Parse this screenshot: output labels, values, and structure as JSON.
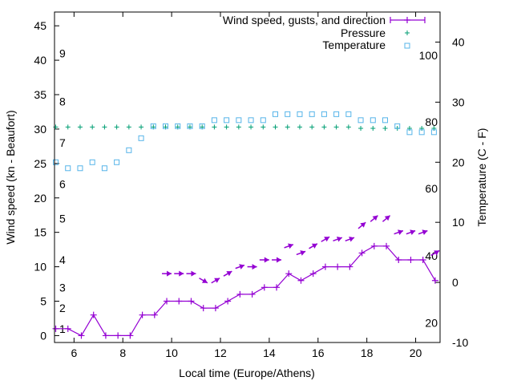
{
  "chart_data": {
    "type": "line",
    "xlabel": "Local time (Europe/Athens)",
    "ylabel": "Wind speed (kn - Beaufort)",
    "y2label": "Temperature (C - F)",
    "xlim": [
      5.2,
      21.0
    ],
    "ylim": [
      -1,
      47
    ],
    "y2lim": [
      -10,
      45
    ],
    "xticks": [
      6,
      8,
      10,
      12,
      14,
      16,
      18,
      20
    ],
    "yticks": [
      0,
      5,
      10,
      15,
      20,
      25,
      30,
      35,
      40,
      45
    ],
    "y2ticks": [
      -10,
      0,
      10,
      20,
      30,
      40
    ],
    "beaufort_labels": [
      {
        "label": "1",
        "kn": 1
      },
      {
        "label": "2",
        "kn": 4
      },
      {
        "label": "3",
        "kn": 7
      },
      {
        "label": "4",
        "kn": 11
      },
      {
        "label": "5",
        "kn": 17
      },
      {
        "label": "6",
        "kn": 22
      },
      {
        "label": "7",
        "kn": 28
      },
      {
        "label": "8",
        "kn": 34
      },
      {
        "label": "9",
        "kn": 41
      }
    ],
    "fahrenheit_labels": [
      {
        "label": "20",
        "c": -6.7
      },
      {
        "label": "40",
        "c": 4.4
      },
      {
        "label": "60",
        "c": 15.6
      },
      {
        "label": "80",
        "c": 26.7
      },
      {
        "label": "100",
        "c": 37.8
      }
    ],
    "series": [
      {
        "name": "Wind speed, gusts, and direction",
        "color": "#9400d3",
        "x": [
          5.25,
          5.75,
          6.3,
          6.8,
          7.3,
          7.8,
          8.3,
          8.8,
          9.3,
          9.8,
          10.3,
          10.8,
          11.3,
          11.8,
          12.3,
          12.8,
          13.3,
          13.8,
          14.3,
          14.8,
          15.3,
          15.8,
          16.3,
          16.8,
          17.3,
          17.8,
          18.3,
          18.8,
          19.3,
          19.8,
          20.3,
          20.8
        ],
        "y": [
          1,
          1,
          0,
          3,
          0,
          0,
          0,
          3,
          3,
          5,
          5,
          5,
          4,
          4,
          5,
          6,
          6,
          7,
          7,
          9,
          8,
          9,
          10,
          10,
          10,
          12,
          13,
          13,
          11,
          11,
          11,
          8
        ]
      },
      {
        "name": "Pressure",
        "color": "#009e73",
        "x": [
          5.25,
          5.75,
          6.25,
          6.75,
          7.25,
          7.75,
          8.25,
          8.75,
          9.25,
          9.75,
          10.25,
          10.75,
          11.25,
          11.75,
          12.25,
          12.75,
          13.25,
          13.75,
          14.25,
          14.75,
          15.25,
          15.75,
          16.25,
          16.75,
          17.25,
          17.75,
          18.25,
          18.75,
          19.25,
          19.75,
          20.25,
          20.75
        ],
        "y": [
          30.3,
          30.3,
          30.3,
          30.3,
          30.3,
          30.3,
          30.3,
          30.3,
          30.3,
          30.3,
          30.3,
          30.3,
          30.3,
          30.3,
          30.3,
          30.3,
          30.3,
          30.3,
          30.3,
          30.3,
          30.3,
          30.3,
          30.3,
          30.3,
          30.3,
          30.1,
          30.1,
          30.1,
          30.1,
          30.1,
          30.1,
          30.1
        ]
      },
      {
        "name": "Temperature",
        "color": "#56b4e9",
        "axis": "y2",
        "x": [
          5.25,
          5.75,
          6.25,
          6.75,
          7.25,
          7.75,
          8.25,
          8.75,
          9.25,
          9.75,
          10.25,
          10.75,
          11.25,
          11.75,
          12.25,
          12.75,
          13.25,
          13.75,
          14.25,
          14.75,
          15.25,
          15.75,
          16.25,
          16.75,
          17.25,
          17.75,
          18.25,
          18.75,
          19.25,
          19.75,
          20.25,
          20.75
        ],
        "y": [
          20,
          19,
          19,
          20,
          19,
          20,
          22,
          24,
          26,
          26,
          26,
          26,
          26,
          27,
          27,
          27,
          27,
          27,
          28,
          28,
          28,
          28,
          28,
          28,
          28,
          27,
          27,
          27,
          26,
          25,
          25,
          25
        ]
      }
    ],
    "wind_direction": {
      "name": "Wind direction",
      "color": "#9400d3",
      "x": [
        9.8,
        10.3,
        10.8,
        11.3,
        11.8,
        12.3,
        12.8,
        13.3,
        13.8,
        14.3,
        14.8,
        15.3,
        15.8,
        16.3,
        16.8,
        17.3,
        17.8,
        18.3,
        18.8,
        19.3,
        19.8,
        20.3,
        20.8
      ],
      "y": [
        9,
        9,
        9,
        8,
        8,
        9,
        10,
        10,
        11,
        11,
        13,
        12,
        13,
        14,
        14,
        14,
        16,
        17,
        17,
        15,
        15,
        15,
        12
      ],
      "bearing_deg": [
        270,
        270,
        270,
        300,
        240,
        240,
        250,
        270,
        270,
        270,
        250,
        250,
        240,
        240,
        250,
        250,
        230,
        230,
        230,
        250,
        250,
        250,
        240
      ]
    }
  }
}
